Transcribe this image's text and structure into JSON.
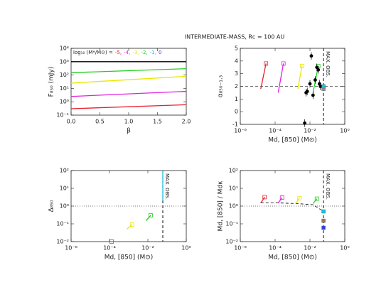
{
  "title": "INTERMEDIATE-MASS, Rc = 100 AU",
  "chart_data": [
    {
      "type": "line",
      "xlabel": "β",
      "ylabel": "F₈₅₀ (mJy)",
      "xlog": false,
      "ylog": true,
      "xlim": [
        0,
        2
      ],
      "ylim": [
        0.1,
        10000
      ],
      "xticks": [
        {
          "value": 0,
          "label": "0.0"
        },
        {
          "value": 0.5,
          "label": "0.5"
        },
        {
          "value": 1,
          "label": "1.0"
        },
        {
          "value": 1.5,
          "label": "1.5"
        },
        {
          "value": 2,
          "label": "2.0"
        }
      ],
      "yticks": [
        {
          "value": 0.1,
          "label": "10⁻¹"
        },
        {
          "value": 1,
          "label": "10⁰"
        },
        {
          "value": 10,
          "label": "10¹"
        },
        {
          "value": 100,
          "label": "10²"
        },
        {
          "value": 1000,
          "label": "10³"
        },
        {
          "value": 10000,
          "label": "10⁴"
        }
      ],
      "legend_title": "log₁₀ (M*/M⊙) =",
      "legend": [
        {
          "label": "-5,",
          "color": "#e8202a"
        },
        {
          "label": "-4,",
          "color": "#e020e0"
        },
        {
          "label": "-3,",
          "color": "#e8e800"
        },
        {
          "label": "-2,",
          "color": "#20d020"
        },
        {
          "label": "-1,",
          "color": "#20c0e0"
        },
        {
          "label": "0",
          "color": "#3040e0"
        }
      ],
      "series": [
        {
          "color": "#e8202a",
          "x": [
            0,
            2
          ],
          "values": [
            0.3,
            0.6
          ]
        },
        {
          "color": "#e020e0",
          "x": [
            0,
            2
          ],
          "values": [
            2.5,
            6
          ]
        },
        {
          "color": "#e8e800",
          "x": [
            0,
            2
          ],
          "values": [
            25,
            80
          ]
        },
        {
          "color": "#20d020",
          "x": [
            0,
            2
          ],
          "values": [
            150,
            300
          ]
        },
        {
          "color": "#000000",
          "x": [
            0,
            2
          ],
          "values": [
            1000,
            1000
          ]
        }
      ]
    },
    {
      "type": "line",
      "xlabel": "Md, [850] (M⊙)",
      "ylabel": "α₈₅₀₋₁.₃",
      "xlog": true,
      "ylog": false,
      "xlim": [
        1e-06,
        1
      ],
      "ylim": [
        -1,
        5
      ],
      "xticks": [
        {
          "value": 1e-06,
          "label": "10⁻⁶"
        },
        {
          "value": 0.0001,
          "label": "10⁻⁴"
        },
        {
          "value": 0.01,
          "label": "10⁻²"
        },
        {
          "value": 1,
          "label": "10⁰"
        }
      ],
      "yticks": [
        -1,
        0,
        1,
        2,
        3,
        4,
        5
      ],
      "hlines": [
        {
          "value": 2,
          "dash": "4,3"
        }
      ],
      "vlines": [
        {
          "value": 0.06,
          "label": "MAX. OBS."
        }
      ],
      "series": [
        {
          "color": "#e8202a",
          "marker": true,
          "x": [
            1.5e-05,
            3e-05
          ],
          "values": [
            1.8,
            3.8
          ]
        },
        {
          "color": "#e020e0",
          "marker": true,
          "x": [
            0.00015,
            0.0003
          ],
          "values": [
            1.5,
            3.8
          ]
        },
        {
          "color": "#e8e800",
          "marker": true,
          "x": [
            0.002,
            0.0035
          ],
          "values": [
            1.8,
            3.6
          ]
        },
        {
          "color": "#20d020",
          "marker": true,
          "x": [
            0.015,
            0.03
          ],
          "values": [
            1.5,
            3.6
          ]
        }
      ],
      "points": [
        {
          "color": "#000000",
          "x": [
            0.005,
            0.006,
            0.007,
            0.01,
            0.012,
            0.015,
            0.02,
            0.025,
            0.03,
            0.035,
            0.04
          ],
          "values": [
            -0.9,
            1.5,
            1.6,
            2.2,
            4.4,
            1.3,
            2.5,
            3.5,
            3.3,
            2.2,
            2.0
          ],
          "errors": [
            0.3,
            0.3,
            0.3,
            0.3,
            0.3,
            0.3,
            0.3,
            0.3,
            0.3,
            0.3,
            0.3
          ]
        },
        {
          "color": "#909090",
          "square": true,
          "x": [
            0.06
          ],
          "values": [
            1.8
          ]
        },
        {
          "color": "#20c0e0",
          "square": true,
          "x": [
            0.06
          ],
          "values": [
            2.0
          ]
        }
      ]
    },
    {
      "type": "line",
      "xlabel": "Md, [850] (M⊙)",
      "ylabel": "Δ₈₅₀",
      "xlog": true,
      "ylog": true,
      "xlim": [
        1e-06,
        1
      ],
      "ylim": [
        0.01,
        100
      ],
      "xticks": [
        {
          "value": 1e-06,
          "label": "10⁻⁶"
        },
        {
          "value": 0.0001,
          "label": "10⁻⁴"
        },
        {
          "value": 0.01,
          "label": "10⁻²"
        },
        {
          "value": 1,
          "label": "10⁰"
        }
      ],
      "yticks": [
        {
          "value": 0.01,
          "label": "10⁻²"
        },
        {
          "value": 0.1,
          "label": "10⁻¹"
        },
        {
          "value": 1,
          "label": "10⁰"
        },
        {
          "value": 10,
          "label": "10¹"
        },
        {
          "value": 100,
          "label": "10²"
        }
      ],
      "hlines": [
        {
          "value": 1,
          "dash": "1,2"
        }
      ],
      "vlines": [
        {
          "value": 0.06,
          "label": "MAX. OBS."
        }
      ],
      "series": [
        {
          "color": "#e020e0",
          "marker": true,
          "x": [
            0.00011,
            0.00013
          ],
          "values": [
            0.01,
            0.01
          ]
        },
        {
          "color": "#e8e800",
          "marker": true,
          "x": [
            0.0008,
            0.0015
          ],
          "values": [
            0.05,
            0.09
          ]
        },
        {
          "color": "#20d020",
          "marker": true,
          "x": [
            0.008,
            0.014
          ],
          "values": [
            0.15,
            0.3
          ]
        },
        {
          "color": "#20c0e0",
          "x": [
            0.06,
            0.06
          ],
          "values": [
            2,
            100
          ]
        }
      ]
    },
    {
      "type": "line",
      "xlabel": "Md, [850] (M⊙)",
      "ylabel": "Md, [850] / Mdκ",
      "xlog": true,
      "ylog": true,
      "xlim": [
        1e-06,
        1
      ],
      "ylim": [
        0.01,
        100
      ],
      "xticks": [
        {
          "value": 1e-06,
          "label": "10⁻⁶"
        },
        {
          "value": 0.0001,
          "label": "10⁻⁴"
        },
        {
          "value": 0.01,
          "label": "10⁻²"
        },
        {
          "value": 1,
          "label": "10⁰"
        }
      ],
      "yticks": [
        {
          "value": 0.01,
          "label": "10⁻²"
        },
        {
          "value": 0.1,
          "label": "10⁻¹"
        },
        {
          "value": 1,
          "label": "10⁰"
        },
        {
          "value": 10,
          "label": "10¹"
        },
        {
          "value": 100,
          "label": "10²"
        }
      ],
      "hlines": [
        {
          "value": 1,
          "dash": "1,2"
        }
      ],
      "vlines": [
        {
          "value": 0.06,
          "label": "MAX. OBS."
        }
      ],
      "series": [
        {
          "color": "#000000",
          "dash": "4,3",
          "x": [
            1.5e-05,
            0.00015,
            0.0015,
            0.015,
            0.06
          ],
          "values": [
            1.5,
            1.5,
            1.4,
            1.2,
            0.5
          ]
        },
        {
          "color": "#e8202a",
          "marker": true,
          "x": [
            1.5e-05,
            2.5e-05
          ],
          "values": [
            1.5,
            3.2
          ]
        },
        {
          "color": "#e020e0",
          "marker": true,
          "x": [
            0.00015,
            0.00025
          ],
          "values": [
            1.5,
            3
          ]
        },
        {
          "color": "#e8e800",
          "marker": true,
          "x": [
            0.0015,
            0.0025
          ],
          "values": [
            1.4,
            2.8
          ]
        },
        {
          "color": "#20d020",
          "marker": true,
          "x": [
            0.015,
            0.025
          ],
          "values": [
            1.4,
            2.6
          ]
        }
      ],
      "points": [
        {
          "color": "#20c0e0",
          "square": true,
          "x": [
            0.06
          ],
          "values": [
            0.5
          ]
        },
        {
          "color": "#a07850",
          "square": true,
          "x": [
            0.06
          ],
          "values": [
            0.15
          ]
        },
        {
          "color": "#3040e0",
          "square": true,
          "x": [
            0.06
          ],
          "values": [
            0.06
          ]
        }
      ]
    }
  ]
}
